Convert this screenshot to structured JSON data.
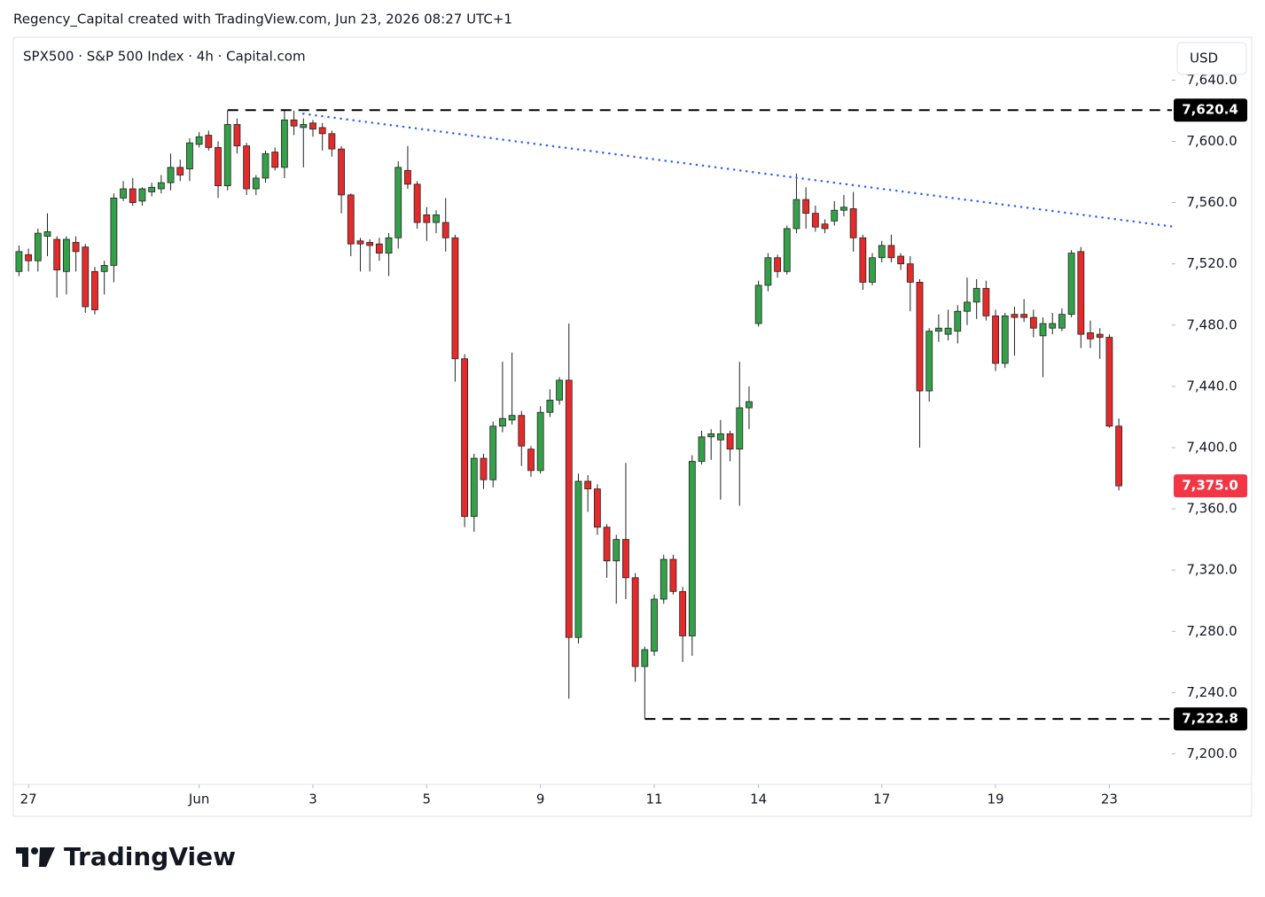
{
  "header": "Regency_Capital created with TradingView.com, Jun 23, 2026 08:27 UTC+1",
  "footer": {
    "brand": "TradingView"
  },
  "chart_data": {
    "type": "candlestick",
    "title": "SPX500 · S&P 500 Index · 4h · Capital.com",
    "currency": "USD",
    "up_color": "#35a04a",
    "down_color": "#e32b2b",
    "open": [
      7515,
      7526,
      7522,
      7538,
      7536,
      7515,
      7534,
      7531,
      7515,
      7515,
      7519,
      7563,
      7569,
      7561,
      7567,
      7569,
      7573,
      7583,
      7582,
      7598,
      7604,
      7596,
      7571,
      7611,
      7597,
      7569,
      7576,
      7593,
      7583,
      7614,
      7609,
      7612,
      7609,
      7605,
      7595,
      7565,
      7535,
      7534,
      7533,
      7527,
      7537,
      7581,
      7572,
      7552,
      7547,
      7547,
      7537,
      7458,
      7355,
      7393,
      7379,
      7414,
      7418,
      7421,
      7399,
      7385,
      7423,
      7431,
      7444,
      7276,
      7378,
      7373,
      7348,
      7326,
      7340,
      7315,
      7257,
      7267,
      7301,
      7327,
      7306,
      7277,
      7391,
      7407,
      7405,
      7409,
      7399,
      7426,
      7481,
      7506,
      7524,
      7515,
      7543,
      7562,
      7553,
      7546,
      7548,
      7555,
      7556,
      7537,
      7508,
      7524,
      7532,
      7525,
      7520,
      7508,
      7437,
      7476,
      7474,
      7476,
      7489,
      7495,
      7504,
      7486,
      7455,
      7487,
      7487,
      7485,
      7473,
      7478,
      7478,
      7487,
      7528,
      7475,
      7474,
      7472,
      7414
    ],
    "high": [
      7532,
      7530,
      7543,
      7553,
      7538,
      7538,
      7538,
      7533,
      7518,
      7522,
      7566,
      7574,
      7576,
      7570,
      7573,
      7578,
      7592,
      7588,
      7602,
      7606,
      7607,
      7600,
      7620,
      7615,
      7599,
      7578,
      7594,
      7596,
      7620,
      7620,
      7615,
      7614,
      7612,
      7607,
      7597,
      7566,
      7537,
      7536,
      7537,
      7540,
      7587,
      7597,
      7574,
      7557,
      7555,
      7563,
      7539,
      7461,
      7396,
      7396,
      7417,
      7456,
      7462,
      7424,
      7401,
      7427,
      7438,
      7446,
      7481,
      7383,
      7382,
      7376,
      7350,
      7343,
      7390,
      7318,
      7270,
      7304,
      7330,
      7330,
      7309,
      7395,
      7411,
      7412,
      7418,
      7411,
      7456,
      7440,
      7509,
      7527,
      7526,
      7545,
      7579,
      7570,
      7558,
      7549,
      7561,
      7565,
      7567,
      7539,
      7527,
      7535,
      7539,
      7527,
      7525,
      7510,
      7478,
      7487,
      7490,
      7493,
      7511,
      7510,
      7509,
      7490,
      7488,
      7492,
      7497,
      7490,
      7485,
      7488,
      7491,
      7529,
      7531,
      7483,
      7478,
      7474,
      7419
    ],
    "low": [
      7512,
      7515,
      7515,
      7525,
      7498,
      7500,
      7515,
      7488,
      7487,
      7500,
      7508,
      7561,
      7558,
      7558,
      7564,
      7566,
      7568,
      7574,
      7574,
      7596,
      7594,
      7563,
      7568,
      7592,
      7565,
      7565,
      7573,
      7581,
      7576,
      7604,
      7583,
      7603,
      7594,
      7590,
      7553,
      7525,
      7515,
      7515,
      7522,
      7512,
      7530,
      7569,
      7543,
      7535,
      7540,
      7528,
      7443,
      7348,
      7345,
      7373,
      7374,
      7410,
      7415,
      7388,
      7381,
      7383,
      7420,
      7428,
      7236,
      7272,
      7358,
      7343,
      7315,
      7298,
      7301,
      7247,
      7223,
      7264,
      7298,
      7304,
      7260,
      7264,
      7389,
      7392,
      7366,
      7391,
      7362,
      7412,
      7479,
      7502,
      7511,
      7513,
      7540,
      7543,
      7541,
      7540,
      7545,
      7551,
      7528,
      7503,
      7506,
      7521,
      7521,
      7516,
      7489,
      7400,
      7430,
      7469,
      7470,
      7468,
      7480,
      7484,
      7483,
      7450,
      7452,
      7460,
      7482,
      7472,
      7446,
      7474,
      7476,
      7485,
      7465,
      7465,
      7458,
      7413,
      7372
    ],
    "close": [
      7528,
      7522,
      7540,
      7541,
      7516,
      7536,
      7528,
      7492,
      7490,
      7519,
      7563,
      7569,
      7560,
      7569,
      7570,
      7573,
      7583,
      7578,
      7599,
      7603,
      7596,
      7571,
      7611,
      7597,
      7569,
      7576,
      7592,
      7583,
      7614,
      7610,
      7611,
      7608,
      7605,
      7595,
      7565,
      7533,
      7533,
      7532,
      7527,
      7537,
      7583,
      7572,
      7547,
      7547,
      7552,
      7537,
      7458,
      7355,
      7393,
      7379,
      7414,
      7419,
      7421,
      7401,
      7385,
      7423,
      7431,
      7444,
      7276,
      7378,
      7373,
      7348,
      7326,
      7340,
      7315,
      7257,
      7268,
      7301,
      7327,
      7306,
      7277,
      7391,
      7407,
      7409,
      7409,
      7399,
      7426,
      7430,
      7506,
      7524,
      7515,
      7543,
      7562,
      7553,
      7544,
      7543,
      7555,
      7557,
      7537,
      7508,
      7524,
      7532,
      7524,
      7520,
      7508,
      7437,
      7476,
      7478,
      7478,
      7489,
      7495,
      7504,
      7486,
      7455,
      7486,
      7485,
      7485,
      7478,
      7481,
      7481,
      7487,
      7527,
      7474,
      7471,
      7472,
      7414,
      7375
    ],
    "xlim": [
      -0.6,
      121.6
    ],
    "xticks": [
      {
        "value": 1,
        "label": "27"
      },
      {
        "value": 19,
        "label": "Jun"
      },
      {
        "value": 31,
        "label": "3"
      },
      {
        "value": 43,
        "label": "5"
      },
      {
        "value": 55,
        "label": "9"
      },
      {
        "value": 67,
        "label": "11"
      },
      {
        "value": 78,
        "label": "14"
      },
      {
        "value": 91,
        "label": "17"
      },
      {
        "value": 103,
        "label": "19"
      },
      {
        "value": 115,
        "label": "23"
      }
    ],
    "ylim": [
      7180,
      7668
    ],
    "yticks": [
      {
        "value": 7200,
        "label": "7,200.0"
      },
      {
        "value": 7240,
        "label": "7,240.0"
      },
      {
        "value": 7280,
        "label": "7,280.0"
      },
      {
        "value": 7320,
        "label": "7,320.0"
      },
      {
        "value": 7360,
        "label": "7,360.0"
      },
      {
        "value": 7400,
        "label": "7,400.0"
      },
      {
        "value": 7440,
        "label": "7,440.0"
      },
      {
        "value": 7480,
        "label": "7,480.0"
      },
      {
        "value": 7520,
        "label": "7,520.0"
      },
      {
        "value": 7560,
        "label": "7,560.0"
      },
      {
        "value": 7600,
        "label": "7,600.0"
      },
      {
        "value": 7640,
        "label": "7,640.0"
      }
    ],
    "levels": [
      {
        "value": 7620.4,
        "label": "7,620.4",
        "from": 22
      },
      {
        "value": 7222.8,
        "label": "7,222.8",
        "from": 66
      }
    ],
    "trendline": {
      "x": [
        30,
        121.6
      ],
      "y": [
        7618,
        7544.4
      ],
      "color": "#2962ff"
    },
    "last_price": {
      "value": 7375,
      "label": "7,375.0",
      "color": "#f23645"
    }
  }
}
